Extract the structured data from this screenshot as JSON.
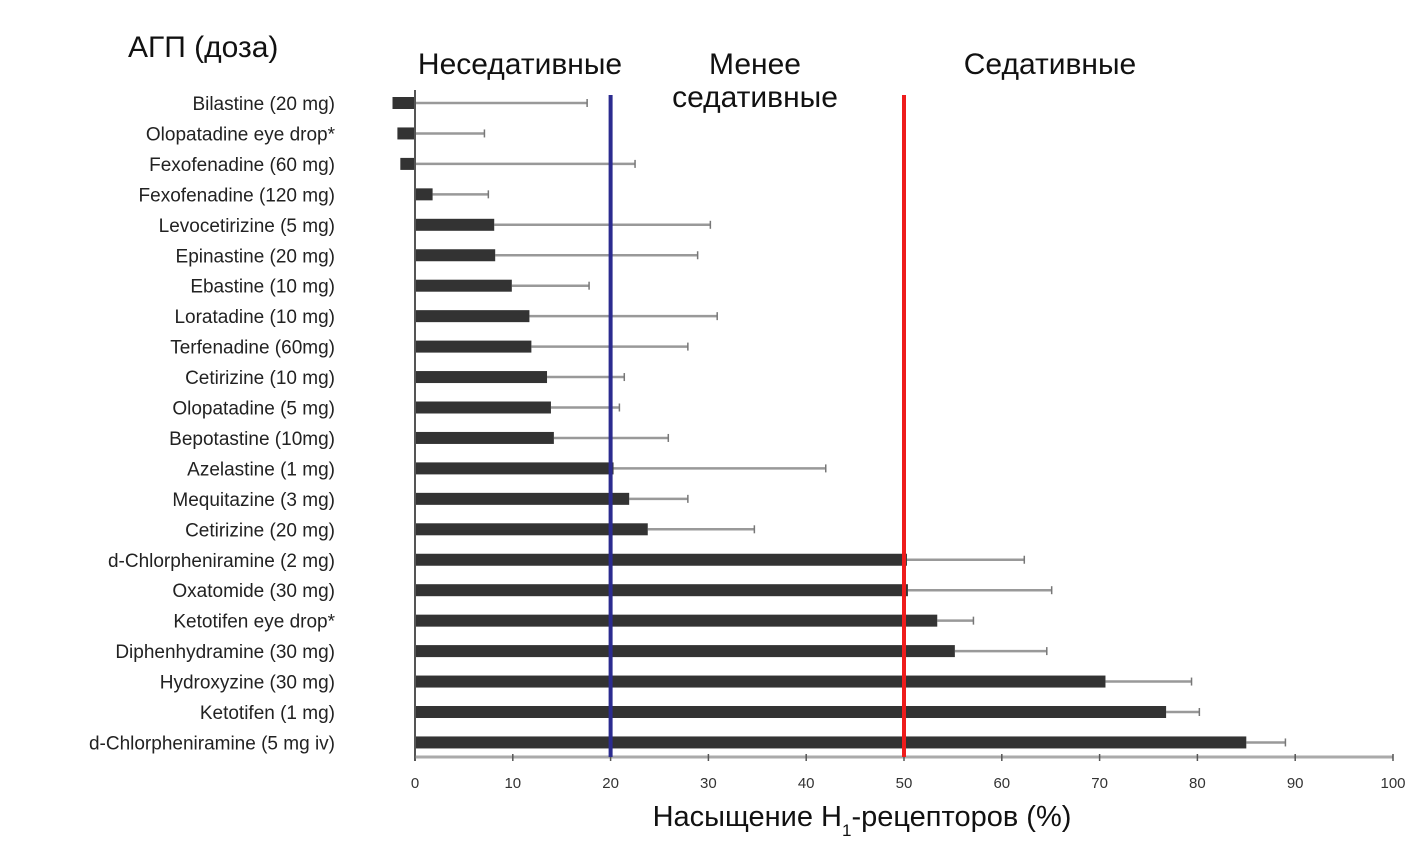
{
  "chart_data": {
    "type": "bar",
    "orientation": "horizontal",
    "title": "АГП (доза)",
    "xlabel": "Насыщение H1-рецепторов (%)",
    "xlabel_parts": {
      "pre": "Насыщение H",
      "sub": "1",
      "post": "-рецепторов (%)"
    },
    "xlim": [
      0,
      100
    ],
    "xticks": [
      0,
      10,
      20,
      30,
      40,
      50,
      60,
      70,
      80,
      90,
      100
    ],
    "categories": [
      "Bilastine (20 mg)",
      "Olopatadine eye drop*",
      "Fexofenadine (60 mg)",
      "Fexofenadine (120 mg)",
      "Levocetirizine (5 mg)",
      "Epinastine (20 mg)",
      "Ebastine (10 mg)",
      "Loratadine (10 mg)",
      "Terfenadine (60mg)",
      "Cetirizine (10 mg)",
      "Olopatadine (5 mg)",
      "Bepotastine (10mg)",
      "Azelastine (1 mg)",
      "Mequitazine (3 mg)",
      "Cetirizine (20 mg)",
      "d-Chlorpheniramine (2 mg)",
      "Oxatomide (30 mg)",
      "Ketotifen eye drop*",
      "Diphenhydramine (30 mg)",
      "Hydroxyzine (30 mg)",
      "Ketotifen (1 mg)",
      "d-Chlorpheniramine (5 mg iv)"
    ],
    "values": [
      -2.3,
      -1.8,
      -1.5,
      1.8,
      8.1,
      8.2,
      9.9,
      11.7,
      11.9,
      13.5,
      13.9,
      14.2,
      20.3,
      21.9,
      23.8,
      50.3,
      50.4,
      53.4,
      55.2,
      70.6,
      76.8,
      85.0
    ],
    "error_upper": [
      17.6,
      7.1,
      22.5,
      7.5,
      30.2,
      28.9,
      17.8,
      30.9,
      27.9,
      21.4,
      20.9,
      25.9,
      42.0,
      27.9,
      34.7,
      62.3,
      65.1,
      57.1,
      64.6,
      79.4,
      80.2,
      89.0
    ],
    "reference_lines": [
      {
        "value": 20,
        "color": "#2b2b8f"
      },
      {
        "value": 50,
        "color": "#ee1c1c"
      }
    ],
    "zones": [
      "Неседативные",
      "Менее седативные",
      "Седативные"
    ],
    "zone_lines": {
      "less_sedative": [
        "Менее",
        "седативные"
      ]
    },
    "bar_color": "#333333",
    "grid": false
  }
}
